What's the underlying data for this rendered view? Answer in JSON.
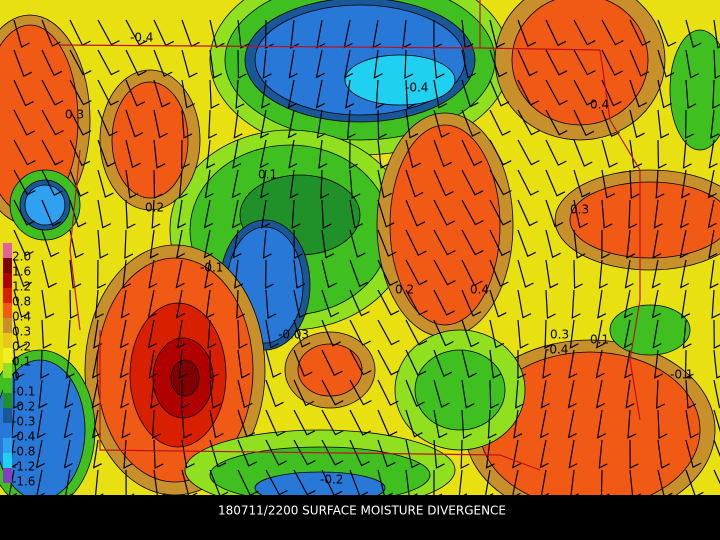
{
  "caption": "180711/2200 SURFACE MOISTURE DIVERGENCE",
  "legend": [
    {
      "label": "2.0",
      "color": "#e060a0"
    },
    {
      "label": "1.6",
      "color": "#800000"
    },
    {
      "label": "1.2",
      "color": "#b00000"
    },
    {
      "label": "0.8",
      "color": "#d82000"
    },
    {
      "label": "0.4",
      "color": "#f05a14"
    },
    {
      "label": "0.3",
      "color": "#c8902a"
    },
    {
      "label": "0.2",
      "color": "#e8c818"
    },
    {
      "label": "0.1",
      "color": "#f0f020"
    },
    {
      "label": "0",
      "color": "#90e020"
    },
    {
      "label": "-0.1",
      "color": "#40c020"
    },
    {
      "label": "-0.2",
      "color": "#209028"
    },
    {
      "label": "-0.3",
      "color": "#185898"
    },
    {
      "label": "-0.4",
      "color": "#2878d8"
    },
    {
      "label": "-0.8",
      "color": "#30a0f0"
    },
    {
      "label": "-1.2",
      "color": "#20d0f0"
    },
    {
      "label": "-1.6",
      "color": "#8040c0"
    }
  ],
  "contour_labels": [
    "-0.4",
    "0.3",
    "-0.4",
    "0.2",
    "0.1",
    "-0.03",
    "0.4",
    "0.3",
    "-0.1",
    "0.2",
    "0.3",
    "-0.4",
    "0.1",
    "-0.2",
    "0.4",
    "-0.1"
  ]
}
